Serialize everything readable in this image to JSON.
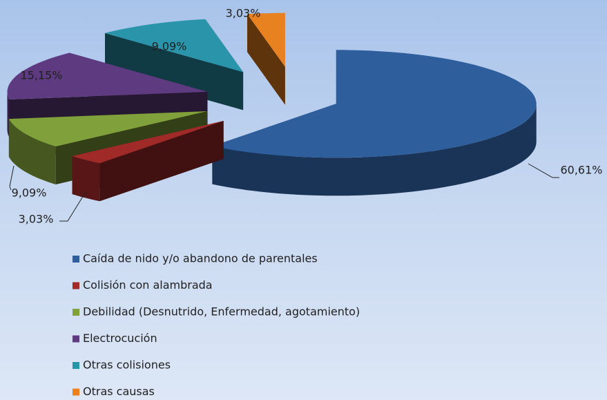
{
  "chart_data": {
    "type": "pie",
    "categories": [
      "Caída de nido y/o abandono de parentales",
      "Colisión con alambrada",
      "Debilidad (Desnutrido, Enfermedad, agotamiento)",
      "Electrocución",
      "Otras colisiones",
      "Otras causas"
    ],
    "values": [
      60.61,
      3.03,
      9.09,
      15.15,
      9.09,
      3.03
    ],
    "value_labels": [
      "60,61%",
      "3,03%",
      "9,09%",
      "15,15%",
      "9,09%",
      "3,03%"
    ],
    "colors": [
      "#2e5e9c",
      "#a02a28",
      "#7fa03a",
      "#5e3b80",
      "#2a94aa",
      "#e8811f"
    ],
    "legend": "bottom"
  }
}
